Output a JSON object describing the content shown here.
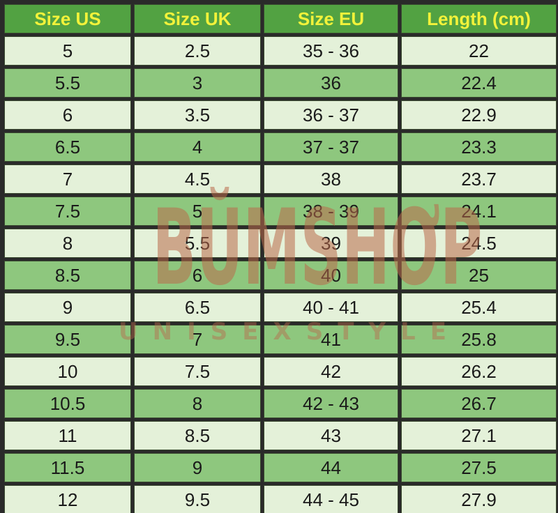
{
  "table": {
    "headers": [
      "Size US",
      "Size UK",
      "Size EU",
      "Length (cm)"
    ],
    "rows": [
      [
        "5",
        "2.5",
        "35 - 36",
        "22"
      ],
      [
        "5.5",
        "3",
        "36",
        "22.4"
      ],
      [
        "6",
        "3.5",
        "36 - 37",
        "22.9"
      ],
      [
        "6.5",
        "4",
        "37 - 37",
        "23.3"
      ],
      [
        "7",
        "4.5",
        "38",
        "23.7"
      ],
      [
        "7.5",
        "5",
        "38 - 39",
        "24.1"
      ],
      [
        "8",
        "5.5",
        "39",
        "24.5"
      ],
      [
        "8.5",
        "6",
        "40",
        "25"
      ],
      [
        "9",
        "6.5",
        "40 - 41",
        "25.4"
      ],
      [
        "9.5",
        "7",
        "41",
        "25.8"
      ],
      [
        "10",
        "7.5",
        "42",
        "26.2"
      ],
      [
        "10.5",
        "8",
        "42 - 43",
        "26.7"
      ],
      [
        "11",
        "8.5",
        "43",
        "27.1"
      ],
      [
        "11.5",
        "9",
        "44",
        "27.5"
      ],
      [
        "12",
        "9.5",
        "44 - 45",
        "27.9"
      ]
    ]
  },
  "watermark": {
    "logo_letters": [
      "B",
      "Ŭ",
      "M",
      "S",
      "H",
      "Ơ",
      "P"
    ],
    "tagline_letters": [
      "U",
      "N",
      "I",
      "S",
      "E",
      "X",
      "S",
      "T",
      "Y",
      "L",
      "E"
    ]
  },
  "colors": {
    "header_bg": "#52a242",
    "header_text": "#f2f23a",
    "row_light": "#e4f1d9",
    "row_dark": "#8ec77e",
    "border": "#2a2a2a",
    "watermark": "#b9694b"
  }
}
